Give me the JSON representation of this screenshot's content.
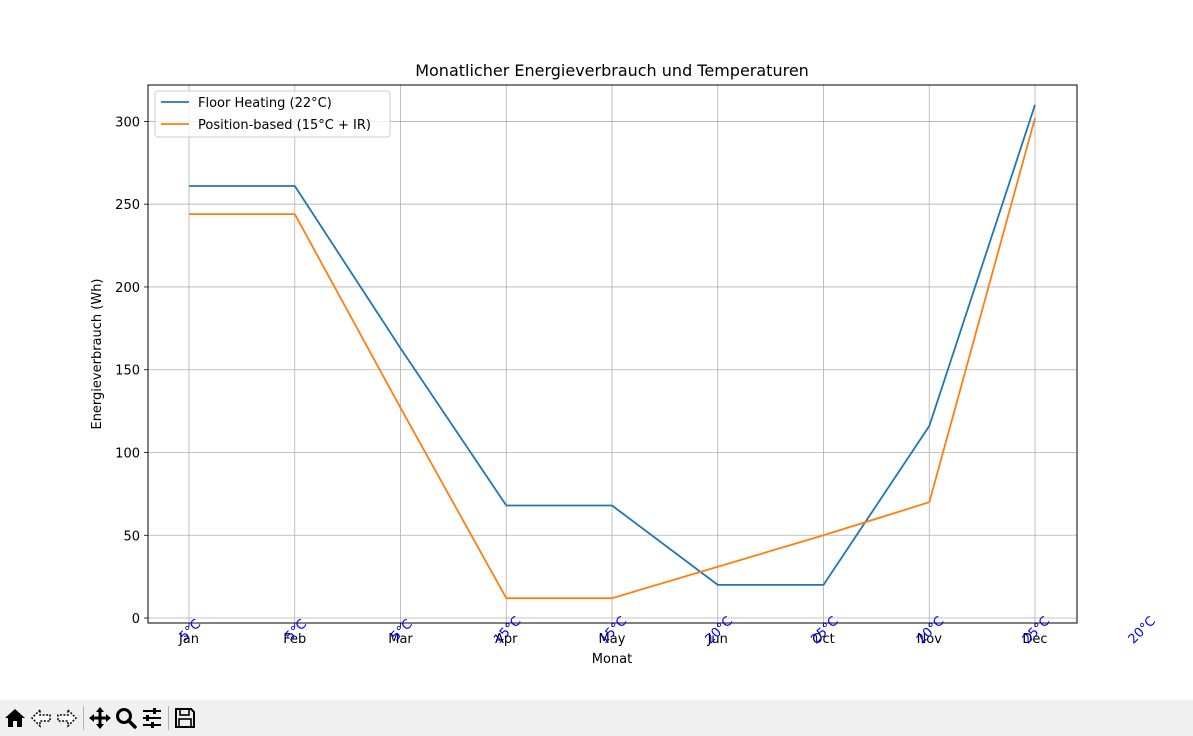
{
  "chart_data": {
    "type": "line",
    "title": "Monatlicher Energieverbrauch und Temperaturen",
    "xlabel": "Monat",
    "ylabel": "Energieverbrauch (Wh)",
    "categories": [
      "Jan",
      "Feb",
      "Mar",
      "Apr",
      "May",
      "Jun",
      "Oct",
      "Nov",
      "Dec"
    ],
    "ylim": [
      -3,
      322
    ],
    "yticks": [
      0,
      50,
      100,
      150,
      200,
      250,
      300
    ],
    "grid": true,
    "legend_position": "upper-left",
    "series": [
      {
        "name": "Floor Heating (22°C)",
        "color": "#1f77b4",
        "values": [
          261,
          261,
          163,
          68,
          68,
          20,
          20,
          116,
          310
        ]
      },
      {
        "name": "Position-based (15°C + IR)",
        "color": "#ff7f0e",
        "values": [
          244,
          244,
          127,
          12,
          12,
          31,
          50,
          70,
          302
        ]
      }
    ],
    "temperature_annotations": {
      "color": "#0000ff",
      "labels": [
        "5°C",
        "5°C",
        "5°C",
        "15°C",
        "15°C",
        "20°C",
        "25°C",
        "20°C",
        "25°C",
        "20°C"
      ]
    }
  },
  "toolbar": {
    "buttons": [
      {
        "name": "home-icon"
      },
      {
        "name": "back-icon"
      },
      {
        "name": "forward-icon"
      },
      {
        "name": "separator"
      },
      {
        "name": "pan-icon"
      },
      {
        "name": "zoom-icon"
      },
      {
        "name": "configure-subplots-icon"
      },
      {
        "name": "separator"
      },
      {
        "name": "save-icon"
      }
    ]
  }
}
